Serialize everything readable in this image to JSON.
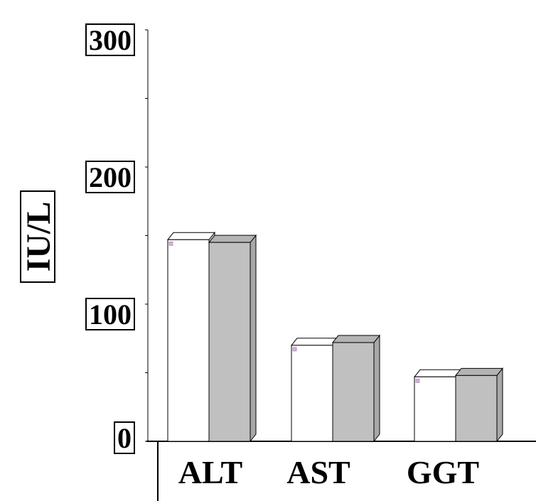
{
  "chart_data": {
    "type": "bar",
    "categories": [
      "ALT",
      "AST",
      "GGT"
    ],
    "series": [
      {
        "values": [
          147,
          70,
          47
        ],
        "color": "#ffffff"
      },
      {
        "values": [
          145,
          72,
          48
        ],
        "color": "#c0c0c0"
      }
    ],
    "title": "",
    "xlabel": "",
    "ylabel": "IU/L",
    "ylim": [
      0,
      300
    ],
    "yticks": [
      "0",
      "100",
      "200",
      "300"
    ],
    "grid": false,
    "legend": "none"
  }
}
